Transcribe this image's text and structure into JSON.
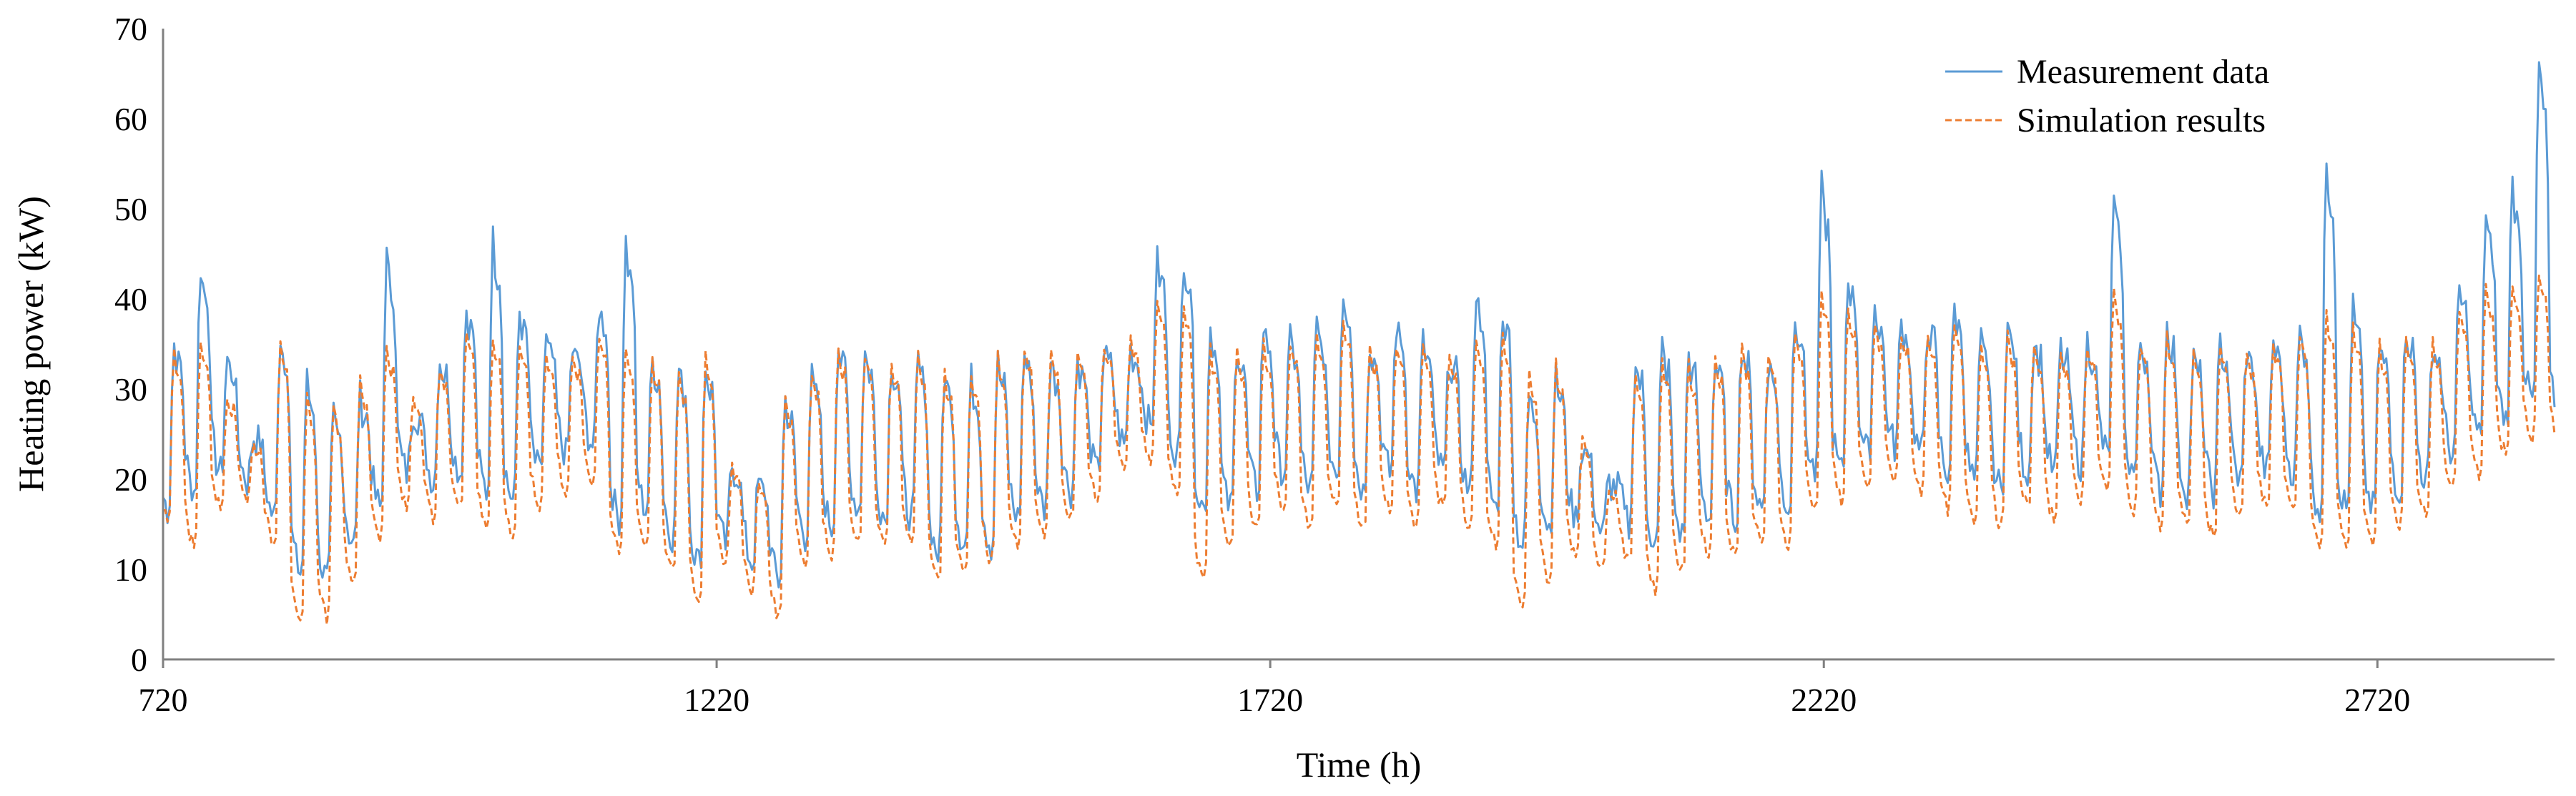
{
  "chart_data": {
    "type": "line",
    "title": "",
    "xlabel": "Time (h)",
    "ylabel": "Heating power (kW)",
    "xlim": [
      720,
      2880
    ],
    "ylim": [
      0,
      70
    ],
    "x_ticks": [
      720,
      1220,
      1720,
      2220,
      2720
    ],
    "y_ticks": [
      0,
      10,
      20,
      30,
      40,
      50,
      60,
      70
    ],
    "grid": false,
    "legend_position": "top-right",
    "colors": {
      "measurement": "#5B9BD5",
      "simulation": "#ED7D31",
      "axis": "#808080"
    },
    "sampling": "approximate series envelope read from the chart; each day shows a daytime peak and night-time low",
    "series": [
      {
        "name": "Measurement data",
        "style": "solid",
        "x": [
          720,
          744,
          768,
          792,
          816,
          840,
          864,
          888,
          912,
          936,
          960,
          984,
          1008,
          1032,
          1056,
          1080,
          1104,
          1128,
          1152,
          1176,
          1200,
          1224,
          1248,
          1272,
          1296,
          1320,
          1344,
          1368,
          1392,
          1416,
          1440,
          1464,
          1488,
          1512,
          1536,
          1560,
          1584,
          1608,
          1632,
          1656,
          1680,
          1704,
          1728,
          1752,
          1776,
          1800,
          1824,
          1848,
          1872,
          1896,
          1920,
          1944,
          1968,
          1992,
          2016,
          2040,
          2064,
          2088,
          2112,
          2136,
          2160,
          2184,
          2208,
          2232,
          2256,
          2280,
          2304,
          2328,
          2352,
          2376,
          2400,
          2424,
          2448,
          2472,
          2496,
          2520,
          2544,
          2568,
          2592,
          2616,
          2640,
          2664,
          2688,
          2712,
          2736,
          2760,
          2784,
          2808,
          2832,
          2856,
          2880
        ],
        "peaks": [
          36,
          45,
          34,
          25,
          37,
          32,
          28,
          30,
          46,
          28,
          34,
          40,
          48,
          40,
          36,
          35,
          40,
          48,
          34,
          33,
          34,
          22,
          20,
          30,
          32,
          36,
          35,
          34,
          34,
          33,
          32,
          34,
          35,
          34,
          34,
          35,
          35,
          45,
          46,
          38,
          36,
          38,
          36,
          38,
          42,
          36,
          38,
          36,
          34,
          42,
          40,
          30,
          32,
          24,
          20,
          34,
          36,
          35,
          34,
          36,
          34,
          40,
          54,
          44,
          40,
          38,
          38,
          40,
          36,
          38,
          36,
          35,
          36,
          52,
          36,
          38,
          34,
          36,
          35,
          36,
          37,
          58,
          40,
          36,
          38,
          36,
          42,
          50,
          54,
          68,
          40
        ],
        "troughs": [
          18,
          20,
          22,
          21,
          17,
          11,
          10,
          14,
          18,
          22,
          21,
          22,
          20,
          19,
          22,
          24,
          25,
          17,
          18,
          15,
          12,
          14,
          12,
          10,
          15,
          16,
          18,
          17,
          17,
          13,
          14,
          14,
          17,
          18,
          20,
          22,
          25,
          27,
          24,
          18,
          18,
          20,
          22,
          20,
          22,
          20,
          22,
          20,
          22,
          20,
          18,
          14,
          16,
          17,
          15,
          16,
          14,
          15,
          17,
          17,
          18,
          18,
          22,
          22,
          24,
          25,
          24,
          22,
          21,
          20,
          22,
          22,
          23,
          24,
          22,
          20,
          20,
          20,
          21,
          22,
          22,
          18,
          18,
          18,
          20,
          21,
          24,
          26,
          28,
          30,
          28
        ]
      },
      {
        "name": "Simulation results",
        "style": "dashed",
        "x": [
          720,
          744,
          768,
          792,
          816,
          840,
          864,
          888,
          912,
          936,
          960,
          984,
          1008,
          1032,
          1056,
          1080,
          1104,
          1128,
          1152,
          1176,
          1200,
          1224,
          1248,
          1272,
          1296,
          1320,
          1344,
          1368,
          1392,
          1416,
          1440,
          1464,
          1488,
          1512,
          1536,
          1560,
          1584,
          1608,
          1632,
          1656,
          1680,
          1704,
          1728,
          1752,
          1776,
          1800,
          1824,
          1848,
          1872,
          1896,
          1920,
          1944,
          1968,
          1992,
          2016,
          2040,
          2064,
          2088,
          2112,
          2136,
          2160,
          2184,
          2208,
          2232,
          2256,
          2280,
          2304,
          2328,
          2352,
          2376,
          2400,
          2424,
          2448,
          2472,
          2496,
          2520,
          2544,
          2568,
          2592,
          2616,
          2640,
          2664,
          2688,
          2712,
          2736,
          2760,
          2784,
          2808,
          2832,
          2856,
          2880
        ],
        "peaks": [
          35,
          37,
          30,
          24,
          37,
          31,
          30,
          32,
          36,
          30,
          33,
          38,
          37,
          36,
          35,
          34,
          37,
          36,
          34,
          33,
          35,
          22,
          20,
          31,
          33,
          36,
          35,
          34,
          35,
          33,
          33,
          35,
          36,
          35,
          35,
          36,
          36,
          40,
          40,
          36,
          35,
          36,
          36,
          37,
          38,
          36,
          36,
          36,
          35,
          37,
          37,
          33,
          34,
          25,
          20,
          33,
          35,
          34,
          35,
          36,
          35,
          38,
          42,
          40,
          38,
          37,
          37,
          38,
          36,
          37,
          36,
          35,
          36,
          42,
          36,
          37,
          35,
          36,
          35,
          36,
          37,
          40,
          38,
          36,
          37,
          36,
          40,
          42,
          42,
          44,
          32
        ],
        "troughs": [
          17,
          14,
          18,
          19,
          14,
          5,
          6,
          10,
          15,
          18,
          17,
          18,
          16,
          15,
          18,
          20,
          21,
          13,
          14,
          11,
          8,
          12,
          9,
          6,
          12,
          13,
          14,
          14,
          14,
          10,
          11,
          12,
          14,
          15,
          17,
          19,
          22,
          23,
          20,
          10,
          14,
          16,
          18,
          16,
          18,
          16,
          18,
          16,
          18,
          16,
          14,
          7,
          10,
          13,
          11,
          12,
          9,
          11,
          13,
          13,
          14,
          14,
          18,
          19,
          20,
          21,
          20,
          18,
          17,
          16,
          18,
          17,
          19,
          20,
          18,
          16,
          16,
          15,
          17,
          18,
          18,
          14,
          14,
          14,
          16,
          17,
          20,
          22,
          24,
          26,
          25
        ]
      }
    ],
    "legend": [
      {
        "label": "Measurement data",
        "series": 0
      },
      {
        "label": "Simulation results",
        "series": 1
      }
    ]
  }
}
